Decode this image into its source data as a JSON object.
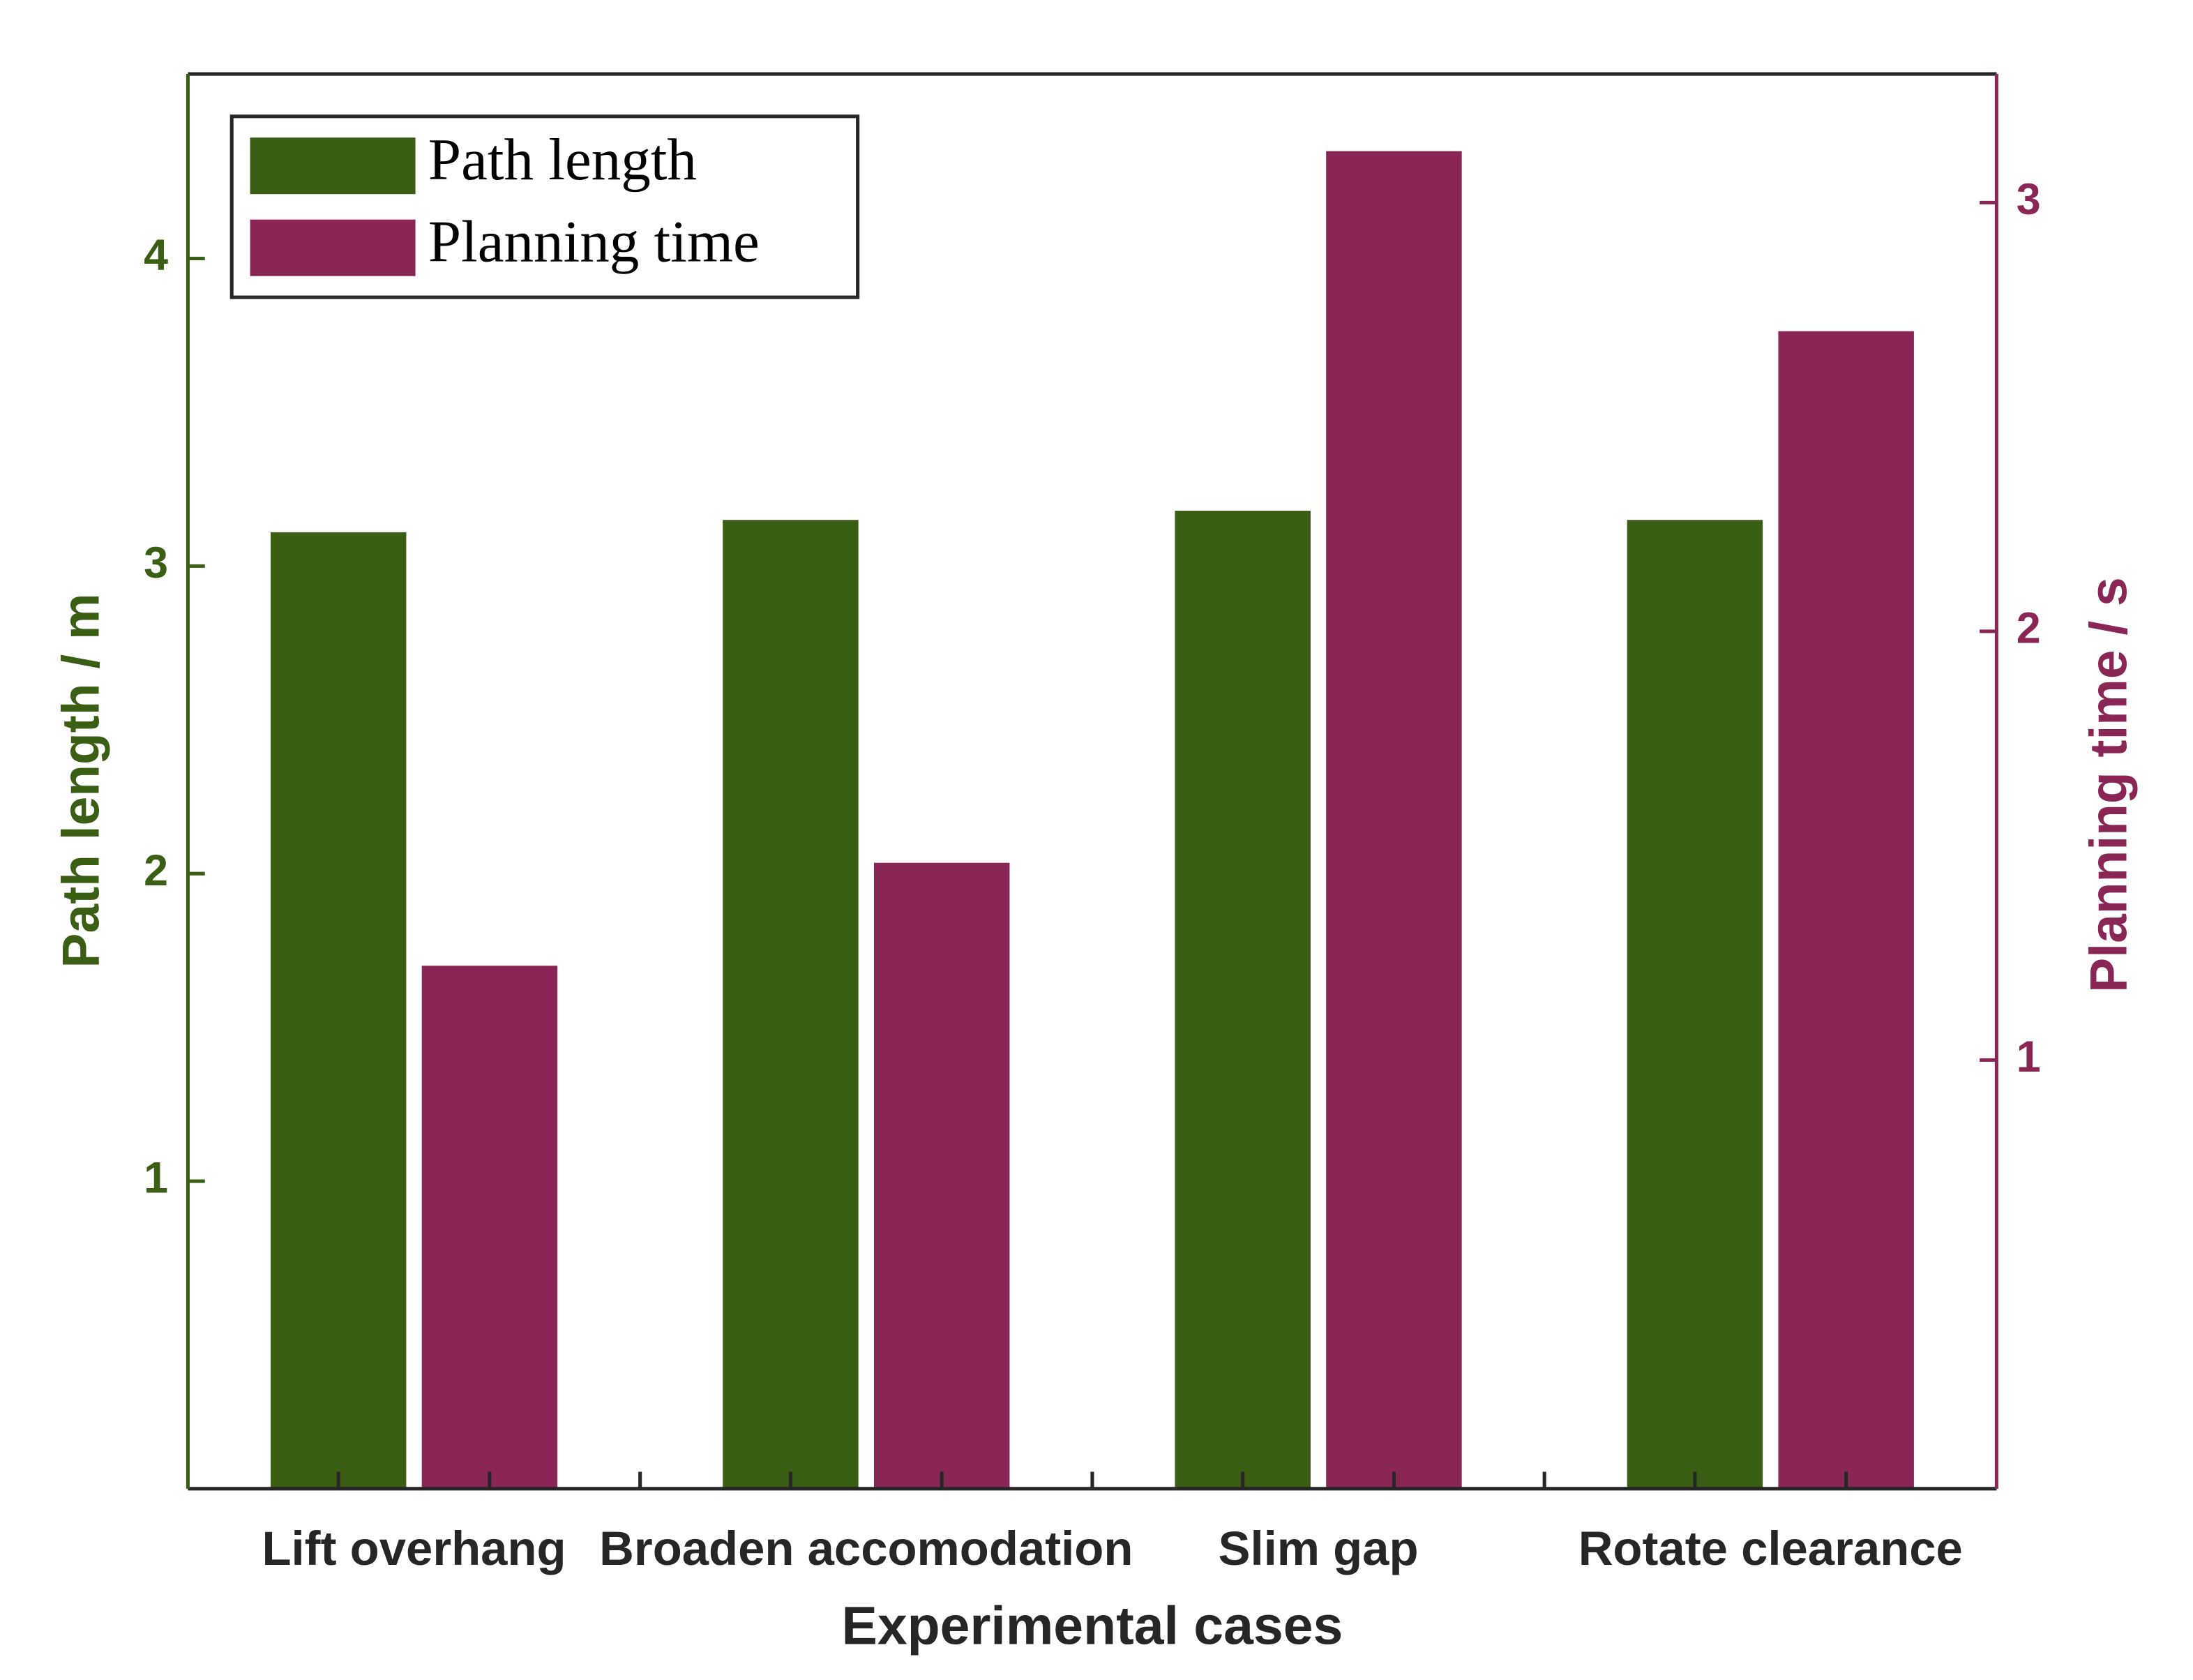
{
  "chart_data": {
    "type": "bar",
    "categories": [
      "Lift overhang",
      "Broaden accomodation",
      "Slim gap",
      "Rotate clearance"
    ],
    "xlabel": "Experimental cases",
    "ylabel": "Path length / m",
    "y2label": "Planning time / s",
    "series": [
      {
        "name": "Path length",
        "color": "#3a5e13",
        "values": [
          3.11,
          3.15,
          3.18,
          3.15
        ]
      },
      {
        "name": "Planning time",
        "color": "#8a2656",
        "axis": "y2",
        "values": [
          1.22,
          1.46,
          3.12,
          2.7
        ]
      }
    ],
    "ylim": [
      0,
      4.6
    ],
    "yticks": [
      1,
      2,
      3,
      4
    ],
    "y2lim": [
      0,
      3.3
    ],
    "y2ticks": [
      1,
      2,
      3
    ],
    "legend": "upper left"
  }
}
